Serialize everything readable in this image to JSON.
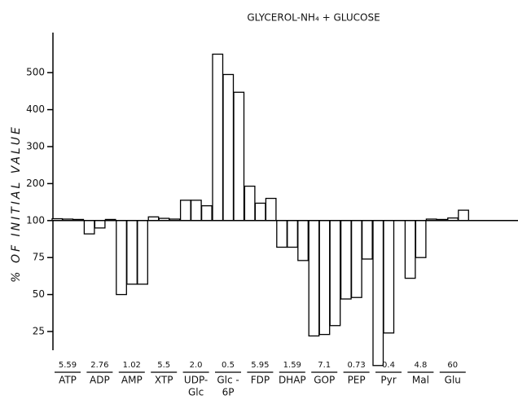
{
  "chart_data": {
    "type": "bar",
    "title": "GLYCEROL-NH₄ + GLUCOSE",
    "y_label": "% OF INITIAL VALUE",
    "categories": [
      "ATP",
      "ADP",
      "AMP",
      "XTP",
      [
        "UDP-",
        "Glc"
      ],
      [
        "Glc -",
        "6P"
      ],
      "FDP",
      "DHAP",
      "GOP",
      "PEP",
      "Pyr",
      "Mal",
      "Glu"
    ],
    "initial_values": [
      "5.59",
      "2.76",
      "1.02",
      "5.5",
      "2.0",
      "0.5",
      "5.95",
      "1.59",
      "7.1",
      "0.73",
      "0.4",
      "4.8",
      "60"
    ],
    "series": [
      {
        "color": "#000000",
        "values": [
          105,
          91,
          50,
          110,
          155,
          550,
          193,
          82,
          22,
          47,
          2,
          61,
          103
        ]
      },
      {
        "color": "#000000",
        "values": [
          104,
          95,
          57,
          106,
          155,
          495,
          147,
          82,
          23,
          48,
          24,
          75,
          107
        ]
      },
      {
        "color": "#000000",
        "values": [
          103,
          103,
          57,
          104,
          140,
          447,
          160,
          73,
          29,
          74,
          null,
          104,
          128
        ]
      }
    ],
    "baseline": 100,
    "ylim": [
      0,
      550
    ],
    "yticks": [
      25,
      50,
      75,
      100,
      200,
      300,
      400,
      500
    ],
    "y_scale": "piecewise",
    "grid": false
  }
}
